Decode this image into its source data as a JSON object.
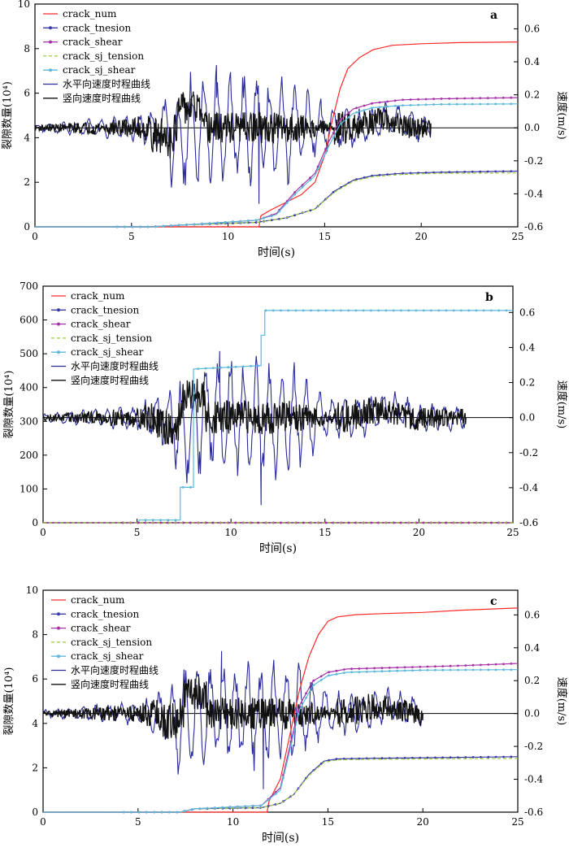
{
  "chart_data": [
    {
      "type": "line",
      "panel_label": "a",
      "xlabel": "时间(s)",
      "ylabel_left": "裂隙数量(10⁴)",
      "ylabel_right": "速度(m/s)",
      "xlim": [
        0,
        25
      ],
      "ylim_left": [
        0,
        10
      ],
      "ylim_right": [
        -0.6,
        0.75
      ],
      "x_ticks": [
        0,
        5,
        10,
        15,
        20,
        25
      ],
      "y_left_ticks": [
        0,
        2,
        4,
        6,
        8,
        10
      ],
      "y_right_ticks": [
        -0.6,
        -0.4,
        -0.2,
        0.0,
        0.2,
        0.4,
        0.6
      ],
      "legend_position": "top-left",
      "legend": [
        "crack_num",
        "crack_tnesion",
        "crack_shear",
        "crack_sj_tension",
        "crack_sj_shear",
        "水平向速度时程曲线",
        "竖向速度时程曲线"
      ],
      "crack_series": [
        {
          "name": "crack_num",
          "color": "#ff2a2a",
          "marker": "none",
          "dash": "",
          "axis": "left",
          "x": [
            0,
            11.6,
            11.7,
            12.2,
            13.0,
            13.8,
            14.5,
            15.0,
            15.4,
            15.8,
            16.2,
            16.8,
            17.5,
            18.5,
            20,
            22,
            25
          ],
          "y": [
            0,
            0,
            0.5,
            0.75,
            1.1,
            1.45,
            2.0,
            3.2,
            4.8,
            6.2,
            7.1,
            7.6,
            7.95,
            8.15,
            8.22,
            8.27,
            8.3
          ]
        },
        {
          "name": "crack_tnesion",
          "color": "#3a3aa8",
          "marker": "dot",
          "dash": "",
          "axis": "left",
          "x": [
            0,
            6,
            8,
            11.5,
            13,
            14.5,
            15.5,
            16.5,
            17.5,
            19,
            21,
            25
          ],
          "y": [
            0,
            0,
            0.1,
            0.2,
            0.4,
            0.8,
            1.6,
            2.1,
            2.3,
            2.4,
            2.45,
            2.5
          ]
        },
        {
          "name": "crack_shear",
          "color": "#a832a8",
          "marker": "dot",
          "dash": "",
          "axis": "left",
          "x": [
            0,
            6,
            8,
            11.5,
            12.5,
            13.5,
            14.5,
            15.2,
            15.8,
            16.5,
            17.5,
            19,
            21,
            25
          ],
          "y": [
            0,
            0,
            0.1,
            0.3,
            0.6,
            1.6,
            2.4,
            3.8,
            4.8,
            5.3,
            5.55,
            5.7,
            5.75,
            5.8
          ]
        },
        {
          "name": "crack_sj_tension",
          "color": "#9acd32",
          "marker": "none",
          "dash": "4,3",
          "axis": "left",
          "x": [
            0,
            6,
            8,
            11.5,
            13,
            14.5,
            15.5,
            16.5,
            17.5,
            19,
            21,
            25
          ],
          "y": [
            0,
            0,
            0.1,
            0.2,
            0.4,
            0.8,
            1.55,
            2.05,
            2.25,
            2.35,
            2.4,
            2.42
          ]
        },
        {
          "name": "crack_sj_shear",
          "color": "#5bb8d8",
          "marker": "dot",
          "dash": "",
          "axis": "left",
          "x": [
            0,
            6,
            8,
            11.5,
            12.5,
            13.5,
            14.5,
            15.2,
            15.8,
            16.5,
            17.5,
            19,
            21,
            25
          ],
          "y": [
            0,
            0,
            0.1,
            0.3,
            0.55,
            1.5,
            2.3,
            3.6,
            4.6,
            5.1,
            5.35,
            5.45,
            5.5,
            5.52
          ]
        }
      ],
      "velocity_series": [
        {
          "name": "水平向速度时程曲线",
          "color": "#2b2b9a",
          "axis": "right",
          "x_start": 0,
          "x_end": 20.5,
          "extremes": [
            0.38,
            -0.46
          ]
        },
        {
          "name": "竖向速度时程曲线",
          "color": "#111111",
          "axis": "right",
          "x_start": 0,
          "x_end": 20.5,
          "extremes": [
            0.22,
            -0.1
          ]
        }
      ]
    },
    {
      "type": "line",
      "panel_label": "b",
      "xlabel": "时间(s)",
      "ylabel_left": "裂隙数量(10⁴)",
      "ylabel_right": "速度(m/s)",
      "xlim": [
        0,
        25
      ],
      "ylim_left": [
        0,
        700
      ],
      "ylim_right": [
        -0.6,
        0.75
      ],
      "x_ticks": [
        0,
        5,
        10,
        15,
        20,
        25
      ],
      "y_left_ticks": [
        0,
        100,
        200,
        300,
        400,
        500,
        600,
        700
      ],
      "y_right_ticks": [
        -0.6,
        -0.4,
        -0.2,
        0.0,
        0.2,
        0.4,
        0.6
      ],
      "legend_position": "top-left",
      "legend": [
        "crack_num",
        "crack_tnesion",
        "crack_shear",
        "crack_sj_tension",
        "crack_sj_shear",
        "水平向速度时程曲线",
        "竖向速度时程曲线"
      ],
      "crack_series": [
        {
          "name": "crack_sj_shear",
          "color": "#5bb8d8",
          "marker": "dot",
          "dash": "",
          "axis": "left",
          "x": [
            0,
            3.8,
            5.1,
            5.1,
            7.3,
            7.3,
            8.0,
            8.0,
            11.6,
            11.6,
            11.8,
            11.8,
            25
          ],
          "y": [
            0,
            0,
            0,
            8,
            8,
            105,
            105,
            455,
            465,
            555,
            555,
            628,
            628
          ]
        },
        {
          "name": "crack_num",
          "color": "#ff2a2a",
          "marker": "none",
          "dash": "",
          "axis": "left",
          "x": [
            0,
            25
          ],
          "y": [
            0,
            0
          ]
        },
        {
          "name": "crack_tnesion",
          "color": "#3a3aa8",
          "marker": "dot",
          "dash": "",
          "axis": "left",
          "x": [
            0,
            25
          ],
          "y": [
            0,
            0
          ]
        },
        {
          "name": "crack_shear",
          "color": "#a832a8",
          "marker": "dot",
          "dash": "",
          "axis": "left",
          "x": [
            0,
            25
          ],
          "y": [
            0,
            0
          ]
        },
        {
          "name": "crack_sj_tension",
          "color": "#9acd32",
          "marker": "none",
          "dash": "4,3",
          "axis": "left",
          "x": [
            0,
            25
          ],
          "y": [
            0,
            0
          ]
        }
      ],
      "velocity_series": [
        {
          "name": "水平向速度时程曲线",
          "color": "#2b2b9a",
          "axis": "right",
          "x_start": 0,
          "x_end": 22.5,
          "extremes": [
            0.38,
            -0.5
          ]
        },
        {
          "name": "竖向速度时程曲线",
          "color": "#111111",
          "axis": "right",
          "x_start": 0,
          "x_end": 22.5,
          "extremes": [
            0.22,
            -0.1
          ]
        }
      ]
    },
    {
      "type": "line",
      "panel_label": "c",
      "xlabel": "时间(s)",
      "ylabel_left": "裂隙数量(10⁴)",
      "ylabel_right": "速度(m/s)",
      "xlim": [
        0,
        25
      ],
      "ylim_left": [
        0,
        10
      ],
      "ylim_right": [
        -0.6,
        0.75
      ],
      "x_ticks": [
        0,
        5,
        10,
        15,
        20,
        25
      ],
      "y_left_ticks": [
        0,
        2,
        4,
        6,
        8,
        10
      ],
      "y_right_ticks": [
        -0.6,
        -0.4,
        -0.2,
        0.0,
        0.2,
        0.4,
        0.6
      ],
      "legend_position": "top-left",
      "legend": [
        "crack_num",
        "crack_tnesion",
        "crack_shear",
        "crack_sj_tension",
        "crack_sj_shear",
        "水平向速度时程曲线",
        "竖向速度时程曲线"
      ],
      "crack_series": [
        {
          "name": "crack_num",
          "color": "#ff2a2a",
          "marker": "none",
          "dash": "",
          "axis": "left",
          "x": [
            0,
            11.8,
            11.9,
            12.5,
            13.0,
            13.5,
            14.0,
            14.5,
            15.0,
            15.5,
            16.5,
            18,
            20,
            22,
            25
          ],
          "y": [
            0,
            0,
            0.5,
            1.5,
            3.5,
            5.5,
            7.0,
            8.0,
            8.6,
            8.8,
            8.9,
            8.95,
            9.0,
            9.1,
            9.2
          ]
        },
        {
          "name": "crack_tnesion",
          "color": "#3a3aa8",
          "marker": "dot",
          "dash": "",
          "axis": "left",
          "x": [
            0,
            7.2,
            8,
            11.5,
            12.5,
            13.2,
            14,
            14.8,
            15.5,
            17,
            20,
            25
          ],
          "y": [
            0,
            0,
            0.15,
            0.2,
            0.4,
            0.8,
            1.7,
            2.3,
            2.4,
            2.42,
            2.45,
            2.5
          ]
        },
        {
          "name": "crack_shear",
          "color": "#a832a8",
          "marker": "dot",
          "dash": "",
          "axis": "left",
          "x": [
            0,
            7.2,
            8,
            11.5,
            12.5,
            13.0,
            13.5,
            14.2,
            15.0,
            16.0,
            18,
            20,
            22,
            25
          ],
          "y": [
            0,
            0,
            0.15,
            0.3,
            1.1,
            3.0,
            4.8,
            5.9,
            6.3,
            6.45,
            6.5,
            6.55,
            6.6,
            6.7
          ]
        },
        {
          "name": "crack_sj_tension",
          "color": "#9acd32",
          "marker": "none",
          "dash": "4,3",
          "axis": "left",
          "x": [
            0,
            7.2,
            8,
            11.5,
            12.5,
            13.2,
            14,
            14.8,
            15.5,
            17,
            20,
            25
          ],
          "y": [
            0,
            0,
            0.15,
            0.2,
            0.4,
            0.8,
            1.65,
            2.25,
            2.35,
            2.38,
            2.4,
            2.42
          ]
        },
        {
          "name": "crack_sj_shear",
          "color": "#5bb8d8",
          "marker": "dot",
          "dash": "",
          "axis": "left",
          "x": [
            0,
            4,
            7.2,
            8,
            11.5,
            12.5,
            13.0,
            13.5,
            14.2,
            15.0,
            16.0,
            18,
            20,
            25
          ],
          "y": [
            0,
            0,
            0,
            0.15,
            0.3,
            1.0,
            2.8,
            4.6,
            5.7,
            6.15,
            6.3,
            6.35,
            6.4,
            6.42
          ]
        }
      ],
      "velocity_series": [
        {
          "name": "水平向速度时程曲线",
          "color": "#2b2b9a",
          "axis": "right",
          "x_start": 0,
          "x_end": 20,
          "extremes": [
            0.38,
            -0.46
          ]
        },
        {
          "name": "竖向速度时程曲线",
          "color": "#111111",
          "axis": "right",
          "x_start": 0,
          "x_end": 20,
          "extremes": [
            0.22,
            -0.1
          ]
        }
      ]
    }
  ]
}
